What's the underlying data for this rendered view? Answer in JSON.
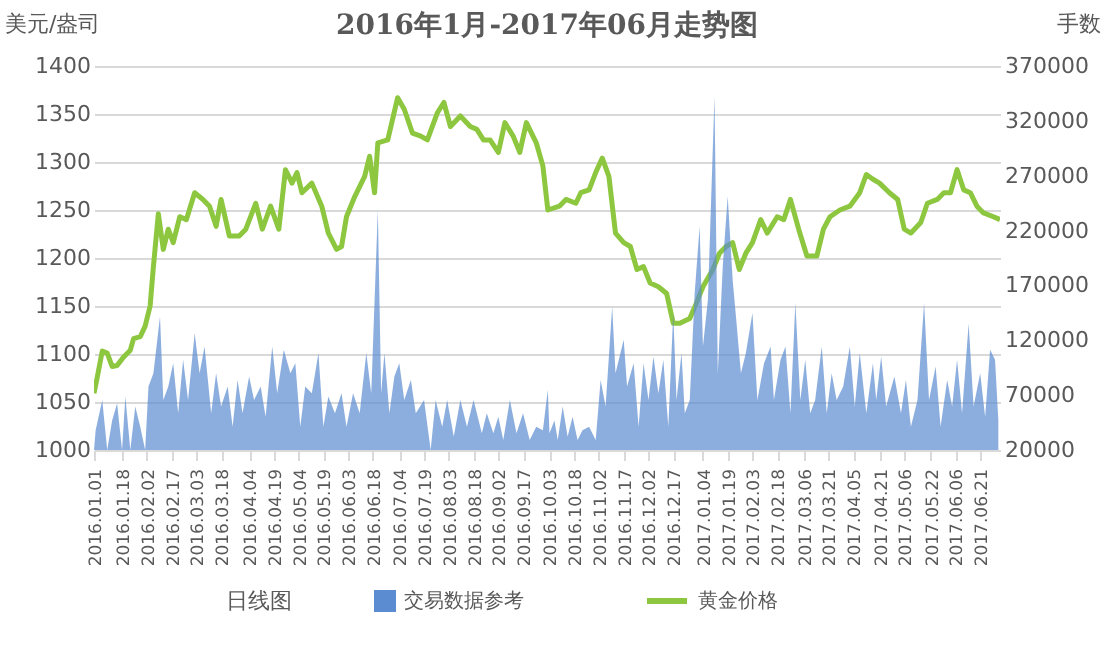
{
  "chart_data": {
    "type": "line",
    "title": "2016年1月-2017年06月走势图",
    "ylabel": "美元/盎司",
    "y2label": "手数",
    "annotations": [
      "日线图"
    ],
    "grid": "y",
    "legend": "bottom",
    "xlim": [
      "2016-01-01",
      "2017-07-03"
    ],
    "xticks": [
      {
        "value": "2016-01-01",
        "label": "2016.01.01"
      },
      {
        "value": "2016-01-18",
        "label": "2016.01.18"
      },
      {
        "value": "2016-02-02",
        "label": "2016.02.02"
      },
      {
        "value": "2016-02-17",
        "label": "2016.02.17"
      },
      {
        "value": "2016-03-03",
        "label": "2016.03.03"
      },
      {
        "value": "2016-03-18",
        "label": "2016.03.18"
      },
      {
        "value": "2016-04-04",
        "label": "2016.04.04"
      },
      {
        "value": "2016-04-19",
        "label": "2016.04.19"
      },
      {
        "value": "2016-05-04",
        "label": "2016.05.04"
      },
      {
        "value": "2016-05-19",
        "label": "2016.05.19"
      },
      {
        "value": "2016-06-03",
        "label": "2016.06.03"
      },
      {
        "value": "2016-06-18",
        "label": "2016.06.18"
      },
      {
        "value": "2016-07-04",
        "label": "2016.07.04"
      },
      {
        "value": "2016-07-19",
        "label": "2016.07.19"
      },
      {
        "value": "2016-08-03",
        "label": "2016.08.03"
      },
      {
        "value": "2016-08-18",
        "label": "2016.08.18"
      },
      {
        "value": "2016-09-02",
        "label": "2016.09.02"
      },
      {
        "value": "2016-09-17",
        "label": "2016.09.17"
      },
      {
        "value": "2016-10-03",
        "label": "2016.10.03"
      },
      {
        "value": "2016-10-18",
        "label": "2016.10.18"
      },
      {
        "value": "2016-11-02",
        "label": "2016.11.02"
      },
      {
        "value": "2016-11-17",
        "label": "2016.11.17"
      },
      {
        "value": "2016-12-02",
        "label": "2016.12.02"
      },
      {
        "value": "2016-12-17",
        "label": "2016.12.17"
      },
      {
        "value": "2017-01-04",
        "label": "2017.01.04"
      },
      {
        "value": "2017-01-19",
        "label": "2017.01.19"
      },
      {
        "value": "2017-02-03",
        "label": "2017.02.03"
      },
      {
        "value": "2017-02-18",
        "label": "2017.02.18"
      },
      {
        "value": "2017-03-06",
        "label": "2017.03.06"
      },
      {
        "value": "2017-03-21",
        "label": "2017.03.21"
      },
      {
        "value": "2017-04-05",
        "label": "2017.04.05"
      },
      {
        "value": "2017-04-21",
        "label": "2017.04.21"
      },
      {
        "value": "2017-05-06",
        "label": "2017.05.06"
      },
      {
        "value": "2017-05-22",
        "label": "2017.05.22"
      },
      {
        "value": "2017-06-06",
        "label": "2017.06.06"
      },
      {
        "value": "2017-06-21",
        "label": "2017.06.21"
      }
    ],
    "ylim": [
      1000,
      1400
    ],
    "yticks": [
      1000,
      1050,
      1100,
      1150,
      1200,
      1250,
      1300,
      1350,
      1400
    ],
    "y2lim": [
      20000,
      370000
    ],
    "y2ticks": [
      20000,
      70000,
      120000,
      170000,
      220000,
      270000,
      320000,
      370000
    ],
    "series": [
      {
        "name": "交易数据参考",
        "type": "area",
        "axis": "y2",
        "color": "#5b8bd0",
        "x": [
          "2016-01-01",
          "2016-01-02",
          "2016-01-06",
          "2016-01-09",
          "2016-01-12",
          "2016-01-15",
          "2016-01-18",
          "2016-01-20",
          "2016-01-23",
          "2016-01-26",
          "2016-01-29",
          "2016-02-01",
          "2016-02-03",
          "2016-02-06",
          "2016-02-10",
          "2016-02-12",
          "2016-02-15",
          "2016-02-18",
          "2016-02-21",
          "2016-02-24",
          "2016-02-27",
          "2016-03-02",
          "2016-03-05",
          "2016-03-08",
          "2016-03-12",
          "2016-03-15",
          "2016-03-18",
          "2016-03-22",
          "2016-03-25",
          "2016-03-28",
          "2016-03-31",
          "2016-04-04",
          "2016-04-07",
          "2016-04-11",
          "2016-04-14",
          "2016-04-18",
          "2016-04-21",
          "2016-04-25",
          "2016-04-29",
          "2016-05-02",
          "2016-05-05",
          "2016-05-08",
          "2016-05-12",
          "2016-05-16",
          "2016-05-19",
          "2016-05-22",
          "2016-05-26",
          "2016-05-30",
          "2016-06-02",
          "2016-06-06",
          "2016-06-10",
          "2016-06-14",
          "2016-06-17",
          "2016-06-21",
          "2016-06-23",
          "2016-06-25",
          "2016-06-28",
          "2016-07-01",
          "2016-07-04",
          "2016-07-07",
          "2016-07-11",
          "2016-07-14",
          "2016-07-19",
          "2016-07-23",
          "2016-07-26",
          "2016-07-30",
          "2016-08-02",
          "2016-08-06",
          "2016-08-10",
          "2016-08-14",
          "2016-08-18",
          "2016-08-23",
          "2016-08-26",
          "2016-08-30",
          "2016-09-02",
          "2016-09-05",
          "2016-09-09",
          "2016-09-13",
          "2016-09-17",
          "2016-09-21",
          "2016-09-25",
          "2016-09-29",
          "2016-10-02",
          "2016-10-03",
          "2016-10-06",
          "2016-10-08",
          "2016-10-11",
          "2016-10-14",
          "2016-10-17",
          "2016-10-20",
          "2016-10-23",
          "2016-10-27",
          "2016-10-31",
          "2016-11-03",
          "2016-11-06",
          "2016-11-10",
          "2016-11-12",
          "2016-11-17",
          "2016-11-19",
          "2016-11-23",
          "2016-11-26",
          "2016-11-29",
          "2016-12-02",
          "2016-12-05",
          "2016-12-08",
          "2016-12-11",
          "2016-12-14",
          "2016-12-17",
          "2016-12-19",
          "2016-12-22",
          "2016-12-24",
          "2016-12-27",
          "2016-12-30",
          "2017-01-02",
          "2017-01-04",
          "2017-01-07",
          "2017-01-11",
          "2017-01-13",
          "2017-01-16",
          "2017-01-19",
          "2017-01-22",
          "2017-01-24",
          "2017-01-27",
          "2017-01-30",
          "2017-02-03",
          "2017-02-06",
          "2017-02-10",
          "2017-02-14",
          "2017-02-16",
          "2017-02-20",
          "2017-02-23",
          "2017-02-26",
          "2017-03-01",
          "2017-03-04",
          "2017-03-07",
          "2017-03-10",
          "2017-03-13",
          "2017-03-17",
          "2017-03-20",
          "2017-03-23",
          "2017-03-26",
          "2017-03-30",
          "2017-04-03",
          "2017-04-06",
          "2017-04-09",
          "2017-04-13",
          "2017-04-17",
          "2017-04-19",
          "2017-04-22",
          "2017-04-25",
          "2017-04-30",
          "2017-05-04",
          "2017-05-07",
          "2017-05-10",
          "2017-05-14",
          "2017-05-18",
          "2017-05-21",
          "2017-05-25",
          "2017-05-28",
          "2017-06-01",
          "2017-06-04",
          "2017-06-07",
          "2017-06-10",
          "2017-06-14",
          "2017-06-17",
          "2017-06-21",
          "2017-06-24",
          "2017-06-27",
          "2017-06-30",
          "2017-07-02"
        ],
        "values": [
          20000,
          38000,
          65600,
          20000,
          47000,
          62600,
          20000,
          68700,
          20000,
          59600,
          41300,
          20000,
          77800,
          90000,
          141700,
          65600,
          77800,
          99100,
          53500,
          102200,
          65600,
          126500,
          90000,
          114300,
          53500,
          90000,
          59600,
          77800,
          41300,
          83900,
          53500,
          87000,
          65600,
          77800,
          50400,
          114300,
          71700,
          111300,
          90000,
          99100,
          41300,
          77800,
          71700,
          108300,
          41300,
          68700,
          53500,
          71700,
          41300,
          71700,
          53500,
          108300,
          71700,
          239100,
          71700,
          108300,
          53500,
          87000,
          99100,
          65600,
          83900,
          53500,
          65600,
          20000,
          65600,
          41300,
          65600,
          32200,
          65600,
          41300,
          65600,
          35200,
          53500,
          35200,
          50400,
          29100,
          65600,
          35200,
          53500,
          29100,
          41300,
          38000,
          74800,
          35200,
          47000,
          29100,
          59600,
          32200,
          50400,
          29100,
          38000,
          41300,
          29100,
          83900,
          59600,
          150900,
          90000,
          120400,
          77800,
          99100,
          41300,
          99100,
          65600,
          105200,
          71700,
          102200,
          41300,
          144800,
          65600,
          108300,
          53500,
          65600,
          163000,
          223900,
          114300,
          157000,
          342600,
          90000,
          187400,
          251300,
          175200,
          141700,
          90000,
          108300,
          144800,
          65600,
          99100,
          114300,
          65600,
          102200,
          114300,
          53500,
          153900,
          65600,
          102200,
          53500,
          65600,
          114300,
          53500,
          90000,
          65600,
          77800,
          114300,
          59600,
          108300,
          53500,
          99100,
          65600,
          105200,
          59600,
          87000,
          53500,
          83900,
          41300,
          65600,
          153900,
          65600,
          96000,
          41300,
          83900,
          59600,
          102200,
          53500,
          135400,
          59600,
          90000,
          50400,
          111300,
          102200,
          47000
        ]
      },
      {
        "name": "黄金价格",
        "type": "line",
        "color": "#8dc63f",
        "x": [
          "2016-01-01",
          "2016-01-03",
          "2016-01-06",
          "2016-01-09",
          "2016-01-12",
          "2016-01-15",
          "2016-01-19",
          "2016-01-23",
          "2016-01-25",
          "2016-01-29",
          "2016-02-01",
          "2016-02-04",
          "2016-02-06",
          "2016-02-09",
          "2016-02-12",
          "2016-02-15",
          "2016-02-18",
          "2016-02-22",
          "2016-02-26",
          "2016-03-02",
          "2016-03-07",
          "2016-03-11",
          "2016-03-15",
          "2016-03-18",
          "2016-03-23",
          "2016-03-29",
          "2016-04-02",
          "2016-04-08",
          "2016-04-12",
          "2016-04-17",
          "2016-04-22",
          "2016-04-26",
          "2016-04-30",
          "2016-05-03",
          "2016-05-06",
          "2016-05-12",
          "2016-05-18",
          "2016-05-22",
          "2016-05-27",
          "2016-05-30",
          "2016-06-02",
          "2016-06-07",
          "2016-06-13",
          "2016-06-16",
          "2016-06-19",
          "2016-06-21",
          "2016-06-27",
          "2016-07-03",
          "2016-07-07",
          "2016-07-12",
          "2016-07-17",
          "2016-07-21",
          "2016-07-27",
          "2016-07-31",
          "2016-08-04",
          "2016-08-10",
          "2016-08-16",
          "2016-08-20",
          "2016-08-24",
          "2016-08-28",
          "2016-09-02",
          "2016-09-06",
          "2016-09-11",
          "2016-09-15",
          "2016-09-19",
          "2016-09-25",
          "2016-09-29",
          "2016-10-02",
          "2016-10-09",
          "2016-10-13",
          "2016-10-19",
          "2016-10-22",
          "2016-10-27",
          "2016-10-31",
          "2016-11-04",
          "2016-11-08",
          "2016-11-12",
          "2016-11-17",
          "2016-11-21",
          "2016-11-25",
          "2016-11-29",
          "2016-12-03",
          "2016-12-08",
          "2016-12-13",
          "2016-12-17",
          "2016-12-21",
          "2016-12-27",
          "2016-12-31",
          "2017-01-04",
          "2017-01-10",
          "2017-01-14",
          "2017-01-18",
          "2017-01-22",
          "2017-01-26",
          "2017-01-30",
          "2017-02-03",
          "2017-02-08",
          "2017-02-12",
          "2017-02-18",
          "2017-02-22",
          "2017-02-26",
          "2017-03-03",
          "2017-03-08",
          "2017-03-14",
          "2017-03-18",
          "2017-03-22",
          "2017-03-28",
          "2017-04-03",
          "2017-04-09",
          "2017-04-13",
          "2017-04-17",
          "2017-04-21",
          "2017-04-27",
          "2017-05-02",
          "2017-05-06",
          "2017-05-10",
          "2017-05-16",
          "2017-05-20",
          "2017-05-26",
          "2017-05-30",
          "2017-06-03",
          "2017-06-07",
          "2017-06-11",
          "2017-06-15",
          "2017-06-19",
          "2017-06-23",
          "2017-06-29",
          "2017-07-03"
        ],
        "values": [
          1059,
          1076,
          1103,
          1101,
          1087,
          1088,
          1097,
          1104,
          1116,
          1118,
          1129,
          1150,
          1191,
          1246,
          1209,
          1230,
          1216,
          1243,
          1240,
          1268,
          1261,
          1254,
          1233,
          1261,
          1223,
          1223,
          1230,
          1257,
          1230,
          1254,
          1230,
          1292,
          1278,
          1289,
          1268,
          1278,
          1254,
          1226,
          1209,
          1212,
          1243,
          1264,
          1285,
          1306,
          1268,
          1320,
          1323,
          1367,
          1355,
          1330,
          1327,
          1323,
          1351,
          1362,
          1337,
          1348,
          1337,
          1334,
          1323,
          1323,
          1310,
          1341,
          1327,
          1310,
          1341,
          1320,
          1296,
          1250,
          1254,
          1261,
          1257,
          1268,
          1271,
          1289,
          1304,
          1285,
          1226,
          1216,
          1212,
          1188,
          1191,
          1174,
          1170,
          1163,
          1132,
          1132,
          1137,
          1153,
          1170,
          1188,
          1205,
          1212,
          1216,
          1188,
          1205,
          1216,
          1240,
          1226,
          1243,
          1240,
          1261,
          1230,
          1202,
          1202,
          1230,
          1243,
          1250,
          1254,
          1268,
          1287,
          1282,
          1278,
          1268,
          1261,
          1230,
          1226,
          1237,
          1257,
          1261,
          1268,
          1268,
          1292,
          1271,
          1268,
          1254,
          1247,
          1243,
          1240
        ]
      }
    ]
  }
}
